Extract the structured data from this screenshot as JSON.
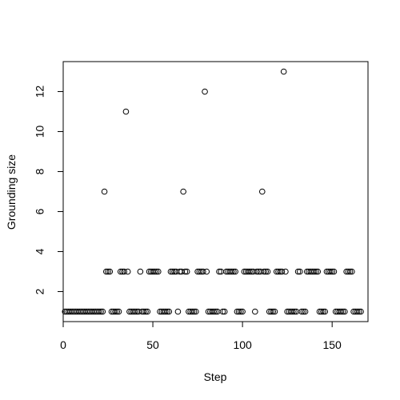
{
  "chart_data": {
    "type": "scatter",
    "title": "",
    "xlabel": "Step",
    "ylabel": "Grounding size",
    "xlim": [
      0,
      170
    ],
    "ylim": [
      0.5,
      13.5
    ],
    "xticks": [
      0,
      50,
      100,
      150
    ],
    "yticks": [
      2,
      4,
      6,
      8,
      10,
      12
    ],
    "grid": false,
    "legend": "none",
    "series": [
      {
        "x": [
          1,
          2,
          3,
          4,
          5,
          6,
          7,
          8,
          9,
          10,
          11,
          12,
          13,
          14,
          15,
          16,
          17,
          18,
          19,
          20,
          21,
          22,
          23,
          24,
          25,
          26,
          27,
          28,
          29,
          30,
          31,
          32,
          33,
          34,
          35,
          36,
          37,
          38,
          39,
          40,
          41,
          42,
          43,
          44,
          45,
          46,
          47,
          48,
          49,
          50,
          51,
          52,
          53,
          54,
          55,
          56,
          57,
          58,
          59,
          60,
          61,
          62,
          63,
          64,
          65,
          66,
          67,
          68,
          69,
          70,
          71,
          72,
          73,
          74,
          75,
          76,
          77,
          78,
          79,
          80,
          81,
          82,
          83,
          84,
          85,
          86,
          87,
          88,
          89,
          90,
          91,
          92,
          93,
          94,
          95,
          96,
          97,
          98,
          99,
          100,
          101,
          102,
          103,
          104,
          105,
          106,
          107,
          108,
          109,
          110,
          111,
          112,
          113,
          114,
          115,
          116,
          117,
          118,
          119,
          120,
          121,
          122,
          123,
          124,
          125,
          126,
          127,
          128,
          129,
          130,
          131,
          132,
          133,
          134,
          135,
          136,
          137,
          138,
          139,
          140,
          141,
          142,
          143,
          144,
          145,
          146,
          147,
          148,
          149,
          150,
          151,
          152,
          153,
          154,
          155,
          156,
          157,
          158,
          159,
          160,
          161,
          162,
          163,
          164,
          165,
          166
        ],
        "y": [
          1,
          1,
          1,
          1,
          1,
          1,
          1,
          1,
          1,
          1,
          1,
          1,
          1,
          1,
          1,
          1,
          1,
          1,
          1,
          1,
          1,
          1,
          7,
          3,
          3,
          3,
          1,
          1,
          1,
          1,
          1,
          3,
          3,
          3,
          11,
          3,
          1,
          1,
          1,
          1,
          1,
          1,
          3,
          1,
          1,
          1,
          1,
          3,
          3,
          3,
          3,
          3,
          3,
          1,
          1,
          1,
          1,
          1,
          1,
          3,
          3,
          3,
          3,
          1,
          3,
          3,
          7,
          3,
          3,
          1,
          1,
          1,
          1,
          1,
          3,
          3,
          3,
          3,
          12,
          3,
          1,
          1,
          1,
          1,
          1,
          1,
          3,
          3,
          1,
          1,
          3,
          3,
          3,
          3,
          3,
          3,
          1,
          1,
          1,
          1,
          3,
          3,
          3,
          3,
          3,
          3,
          1,
          3,
          3,
          3,
          7,
          3,
          3,
          3,
          1,
          1,
          1,
          1,
          3,
          3,
          3,
          3,
          13,
          3,
          1,
          1,
          1,
          1,
          1,
          1,
          3,
          3,
          1,
          1,
          1,
          3,
          3,
          3,
          3,
          3,
          3,
          3,
          1,
          1,
          1,
          1,
          3,
          3,
          3,
          3,
          3,
          1,
          1,
          1,
          1,
          1,
          1,
          3,
          3,
          3,
          3,
          1,
          1,
          1,
          1,
          1
        ]
      }
    ]
  }
}
